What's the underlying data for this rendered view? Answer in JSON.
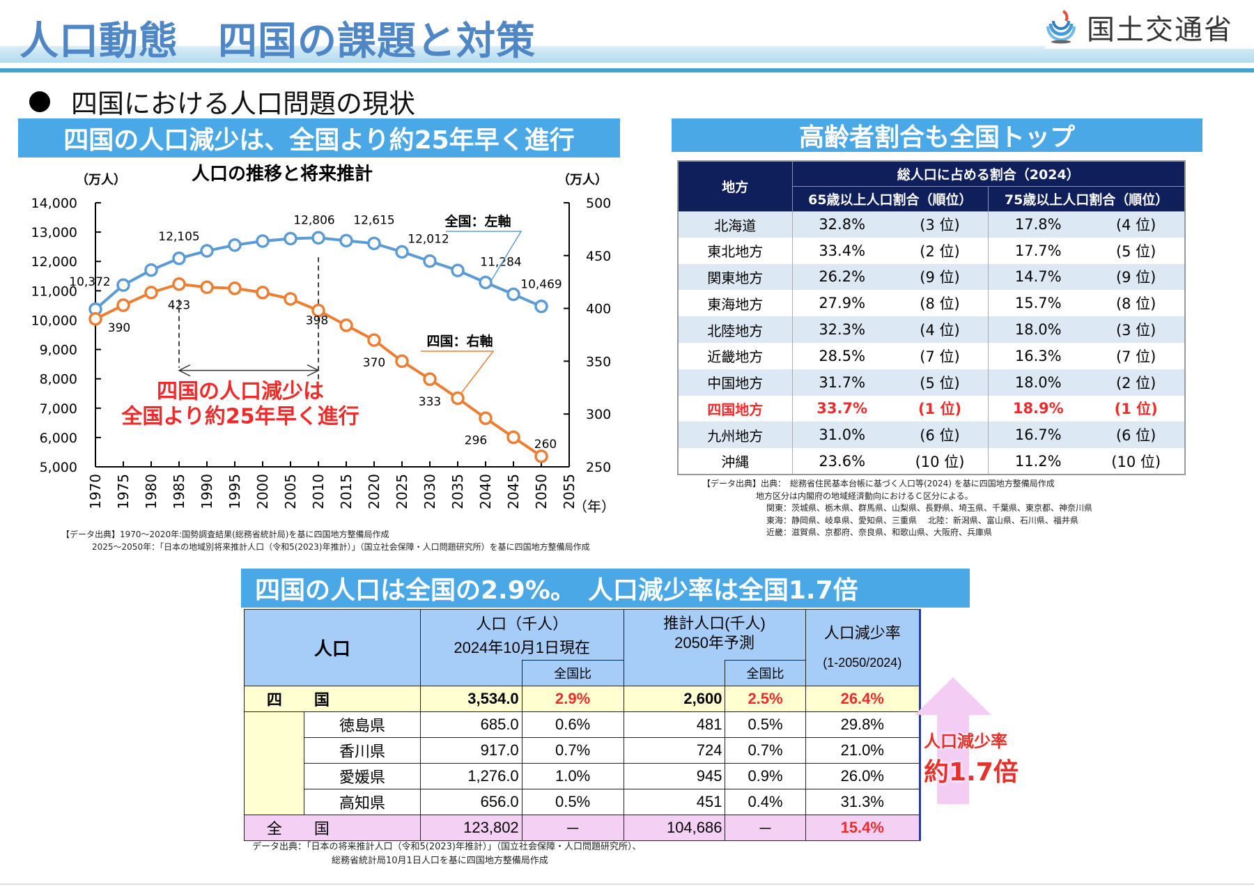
{
  "header": {
    "title": "人口動態　四国の課題と対策",
    "logo_text": "国土交通省"
  },
  "section_heading": "四国における人口問題の現状",
  "banners": {
    "left": "四国の人口減少は、全国より約25年早く進行",
    "right": "高齢者割合も全国トップ",
    "bottom": "四国の人口は全国の2.9%。　人口減少率は全国1.7倍"
  },
  "chart_data": {
    "type": "line",
    "title": "人口の推移と将来推計",
    "xlabel": "（年）",
    "ylabel_left": "（万人）",
    "ylabel_right": "（万人）",
    "x": [
      1970,
      1975,
      1980,
      1985,
      1990,
      1995,
      2000,
      2005,
      2010,
      2015,
      2020,
      2025,
      2030,
      2035,
      2040,
      2045,
      2050
    ],
    "x_ticks": [
      "1970",
      "1975",
      "1980",
      "1985",
      "1990",
      "1995",
      "2000",
      "2005",
      "2010",
      "2015",
      "2020",
      "2025",
      "2030",
      "2035",
      "2040",
      "2045",
      "2050",
      "2055"
    ],
    "xlim": [
      1970,
      2055
    ],
    "ylim_left": [
      5000,
      14000
    ],
    "y_ticks_left": [
      "14,000",
      "13,000",
      "12,000",
      "11,000",
      "10,000",
      "9,000",
      "8,000",
      "7,000",
      "6,000",
      "5,000"
    ],
    "ylim_right": [
      250,
      500
    ],
    "y_ticks_right": [
      "500",
      "450",
      "400",
      "350",
      "300",
      "250"
    ],
    "grid": false,
    "series": [
      {
        "name": "全国：左軸",
        "axis": "left",
        "color": "#5b9bd5",
        "values": [
          10372,
          11194,
          11706,
          12105,
          12361,
          12557,
          12693,
          12777,
          12806,
          12709,
          12615,
          12326,
          12012,
          11693,
          11284,
          10880,
          10469
        ],
        "labels": {
          "1970": "10,372",
          "1985": "12,105",
          "2010": "12,806",
          "2020": "12,615",
          "2030": "12,012",
          "2040": "11,284",
          "2050": "10,469"
        }
      },
      {
        "name": "四国：右軸",
        "axis": "right",
        "color": "#ed7d31",
        "values": [
          390,
          403,
          415,
          423,
          420,
          419,
          415,
          409,
          398,
          384,
          370,
          350,
          333,
          315,
          296,
          278,
          260
        ],
        "labels": {
          "1970": "390",
          "1985": "423",
          "2010": "398",
          "2020": "370",
          "2030": "333",
          "2040": "296",
          "2050": "260"
        }
      }
    ],
    "annotation": {
      "span_from": 1985,
      "span_to": 2010,
      "text_line1": "四国の人口減少は",
      "text_line2": "全国より約25年早く進行",
      "color": "#ee2a2a"
    }
  },
  "chart_source": {
    "line1": "【データ出典】1970～2020年:国勢調査結果(総務省統計局)を基に四国地方整備局作成",
    "line2": "2025～2050年：「日本の地域別将来推計人口（令和5(2023)年推計）」（国立社会保障・人口問題研究所）を基に四国地方整備局作成"
  },
  "elderly_table": {
    "header_region": "地方",
    "header_group": "総人口に占める割合（2024）",
    "header_65": "65歳以上人口割合（順位）",
    "header_75": "75歳以上人口割合（順位）",
    "rows": [
      {
        "region": "北海道",
        "p65": "32.8%",
        "r65": "(3 位)",
        "p75": "17.8%",
        "r75": "(4 位)"
      },
      {
        "region": "東北地方",
        "p65": "33.4%",
        "r65": "(2 位)",
        "p75": "17.7%",
        "r75": "(5 位)"
      },
      {
        "region": "関東地方",
        "p65": "26.2%",
        "r65": "(9 位)",
        "p75": "14.7%",
        "r75": "(9 位)"
      },
      {
        "region": "東海地方",
        "p65": "27.9%",
        "r65": "(8 位)",
        "p75": "15.7%",
        "r75": "(8 位)"
      },
      {
        "region": "北陸地方",
        "p65": "32.3%",
        "r65": "(4 位)",
        "p75": "18.0%",
        "r75": "(3 位)"
      },
      {
        "region": "近畿地方",
        "p65": "28.5%",
        "r65": "(7 位)",
        "p75": "16.3%",
        "r75": "(7 位)"
      },
      {
        "region": "中国地方",
        "p65": "31.7%",
        "r65": "(5 位)",
        "p75": "18.0%",
        "r75": "(2 位)"
      },
      {
        "region": "四国地方",
        "p65": "33.7%",
        "r65": "(1 位)",
        "p75": "18.9%",
        "r75": "(1 位)"
      },
      {
        "region": "九州地方",
        "p65": "31.0%",
        "r65": "(6 位)",
        "p75": "16.7%",
        "r75": "(6 位)"
      },
      {
        "region": "沖縄",
        "p65": "23.6%",
        "r65": "(10 位)",
        "p75": "11.2%",
        "r75": "(10 位)"
      }
    ],
    "highlight_color": "#ee2a2a"
  },
  "elderly_source": {
    "line1": "【データ出典】出典：　総務省住民基本台帳に基づく人口等(2024) を基に四国地方整備局作成",
    "line2": "地方区分は内閣府の地域経済動向におけるＣ区分による。",
    "line3": "関東：茨城県、栃木県、群馬県、山梨県、長野県、埼玉県、千葉県、東京都、神奈川県",
    "line4": "東海：静岡県、岐阜県、愛知県、三重県　 北陸：新潟県、富山県、石川県、福井県",
    "line5": "近畿：滋賀県、京都府、奈良県、和歌山県、大阪府、兵庫県"
  },
  "population_table": {
    "header_label": "人口",
    "header_pop_line1": "人口（千人）",
    "header_pop_line2": "2024年10月1日現在",
    "header_ratio": "全国比",
    "header_est_line1": "推計人口(千人)",
    "header_est_line2": "2050年予測",
    "header_ratio2": "全国比",
    "header_rate_line1": "人口減少率",
    "header_rate_line2": "(1-2050/2024)",
    "shikoku": {
      "name1": "四",
      "name2": "国",
      "pop": "3,534.0",
      "ratio": "2.9%",
      "est": "2,600",
      "est_ratio": "2.5%",
      "rate": "26.4%"
    },
    "prefectures": [
      {
        "name": "徳島県",
        "pop": "685.0",
        "ratio": "0.6%",
        "est": "481",
        "est_ratio": "0.5%",
        "rate": "29.8%"
      },
      {
        "name": "香川県",
        "pop": "917.0",
        "ratio": "0.7%",
        "est": "724",
        "est_ratio": "0.7%",
        "rate": "21.0%"
      },
      {
        "name": "愛媛県",
        "pop": "1,276.0",
        "ratio": "1.0%",
        "est": "945",
        "est_ratio": "0.9%",
        "rate": "26.0%"
      },
      {
        "name": "高知県",
        "pop": "656.0",
        "ratio": "0.5%",
        "est": "451",
        "est_ratio": "0.4%",
        "rate": "31.3%"
      }
    ],
    "zenkoku": {
      "name1": "全",
      "name2": "国",
      "pop": "123,802",
      "ratio": "－",
      "est": "104,686",
      "est_ratio": "－",
      "rate": "15.4%"
    }
  },
  "rate_callout": {
    "line1": "人口減少率",
    "line2": "約1.7倍"
  },
  "population_source": {
    "line1": "データ出典：「日本の将来推計人口（令和5(2023)年推計）」（国立社会保障・人口問題研究所）、",
    "line2": "総務省統計局10月1日人口を基に四国地方整備局作成"
  }
}
